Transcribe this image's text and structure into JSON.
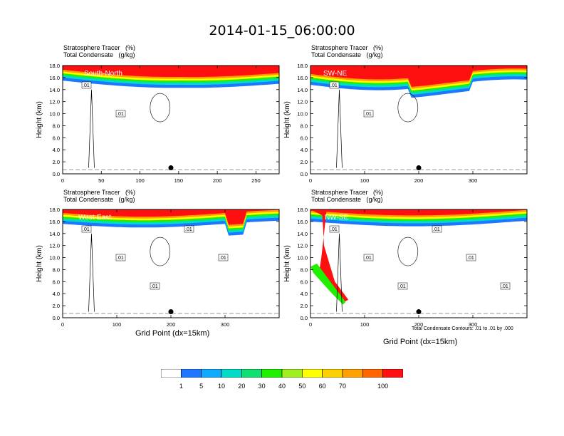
{
  "title": "2014-01-15_06:00:00",
  "panel_header": {
    "line1": "Stratosphere Tracer   (%)",
    "line2": "Total Condensate   (g/kg)"
  },
  "contour_note": "Total Condensate Contours: .01 to .01 by .000",
  "colors": {
    "scale": [
      "#ffffff",
      "#1e78ff",
      "#10aaff",
      "#00dcc8",
      "#10e070",
      "#20f000",
      "#a0f020",
      "#ffff00",
      "#ffd000",
      "#ffa000",
      "#ff6400",
      "#ff1010"
    ],
    "contour": "#000000"
  },
  "chart_data": [
    {
      "type": "heatmap",
      "section": "South-North",
      "xlabel": "",
      "ylabel": "Height (km)",
      "xlim": [
        0,
        280
      ],
      "ylim": [
        0,
        18
      ],
      "xticks": [
        0,
        50,
        100,
        150,
        200,
        250
      ],
      "yticks": [
        0.0,
        2.0,
        4.0,
        6.0,
        8.0,
        10.0,
        12.0,
        14.0,
        16.0,
        18.0
      ],
      "contour_labels": [
        ".01",
        ".01"
      ],
      "marker_x": 140
    },
    {
      "type": "heatmap",
      "section": "SW-NE",
      "xlabel": "",
      "ylabel": "Height (km)",
      "xlim": [
        0,
        400
      ],
      "ylim": [
        0,
        18
      ],
      "xticks": [
        0,
        100,
        200,
        300
      ],
      "yticks": [
        0.0,
        2.0,
        4.0,
        6.0,
        8.0,
        10.0,
        12.0,
        14.0,
        16.0,
        18.0
      ],
      "contour_labels": [
        ".01",
        ".01"
      ],
      "marker_x": 200
    },
    {
      "type": "heatmap",
      "section": "West-East",
      "xlabel": "Grid Point (dx=15km)",
      "ylabel": "Height (km)",
      "xlim": [
        0,
        400
      ],
      "ylim": [
        0,
        18
      ],
      "xticks": [
        0,
        100,
        200,
        300
      ],
      "yticks": [
        0.0,
        2.0,
        4.0,
        6.0,
        8.0,
        10.0,
        12.0,
        14.0,
        16.0,
        18.0
      ],
      "contour_labels": [
        ".01",
        ".01",
        ".01",
        ".01",
        ".01"
      ],
      "marker_x": 200
    },
    {
      "type": "heatmap",
      "section": "NW-SE",
      "xlabel": "Grid Point (dx=15km)",
      "ylabel": "Height (km)",
      "xlim": [
        0,
        400
      ],
      "ylim": [
        0,
        18
      ],
      "xticks": [
        0,
        100,
        200,
        300
      ],
      "yticks": [
        0.0,
        2.0,
        4.0,
        6.0,
        8.0,
        10.0,
        12.0,
        14.0,
        16.0,
        18.0
      ],
      "contour_labels": [
        ".01",
        ".01",
        ".01",
        ".01",
        ".01",
        ".01"
      ],
      "marker_x": 200
    }
  ],
  "colorbar": {
    "labels": [
      "1",
      "5",
      "10",
      "20",
      "30",
      "40",
      "50",
      "60",
      "70",
      "100"
    ]
  }
}
